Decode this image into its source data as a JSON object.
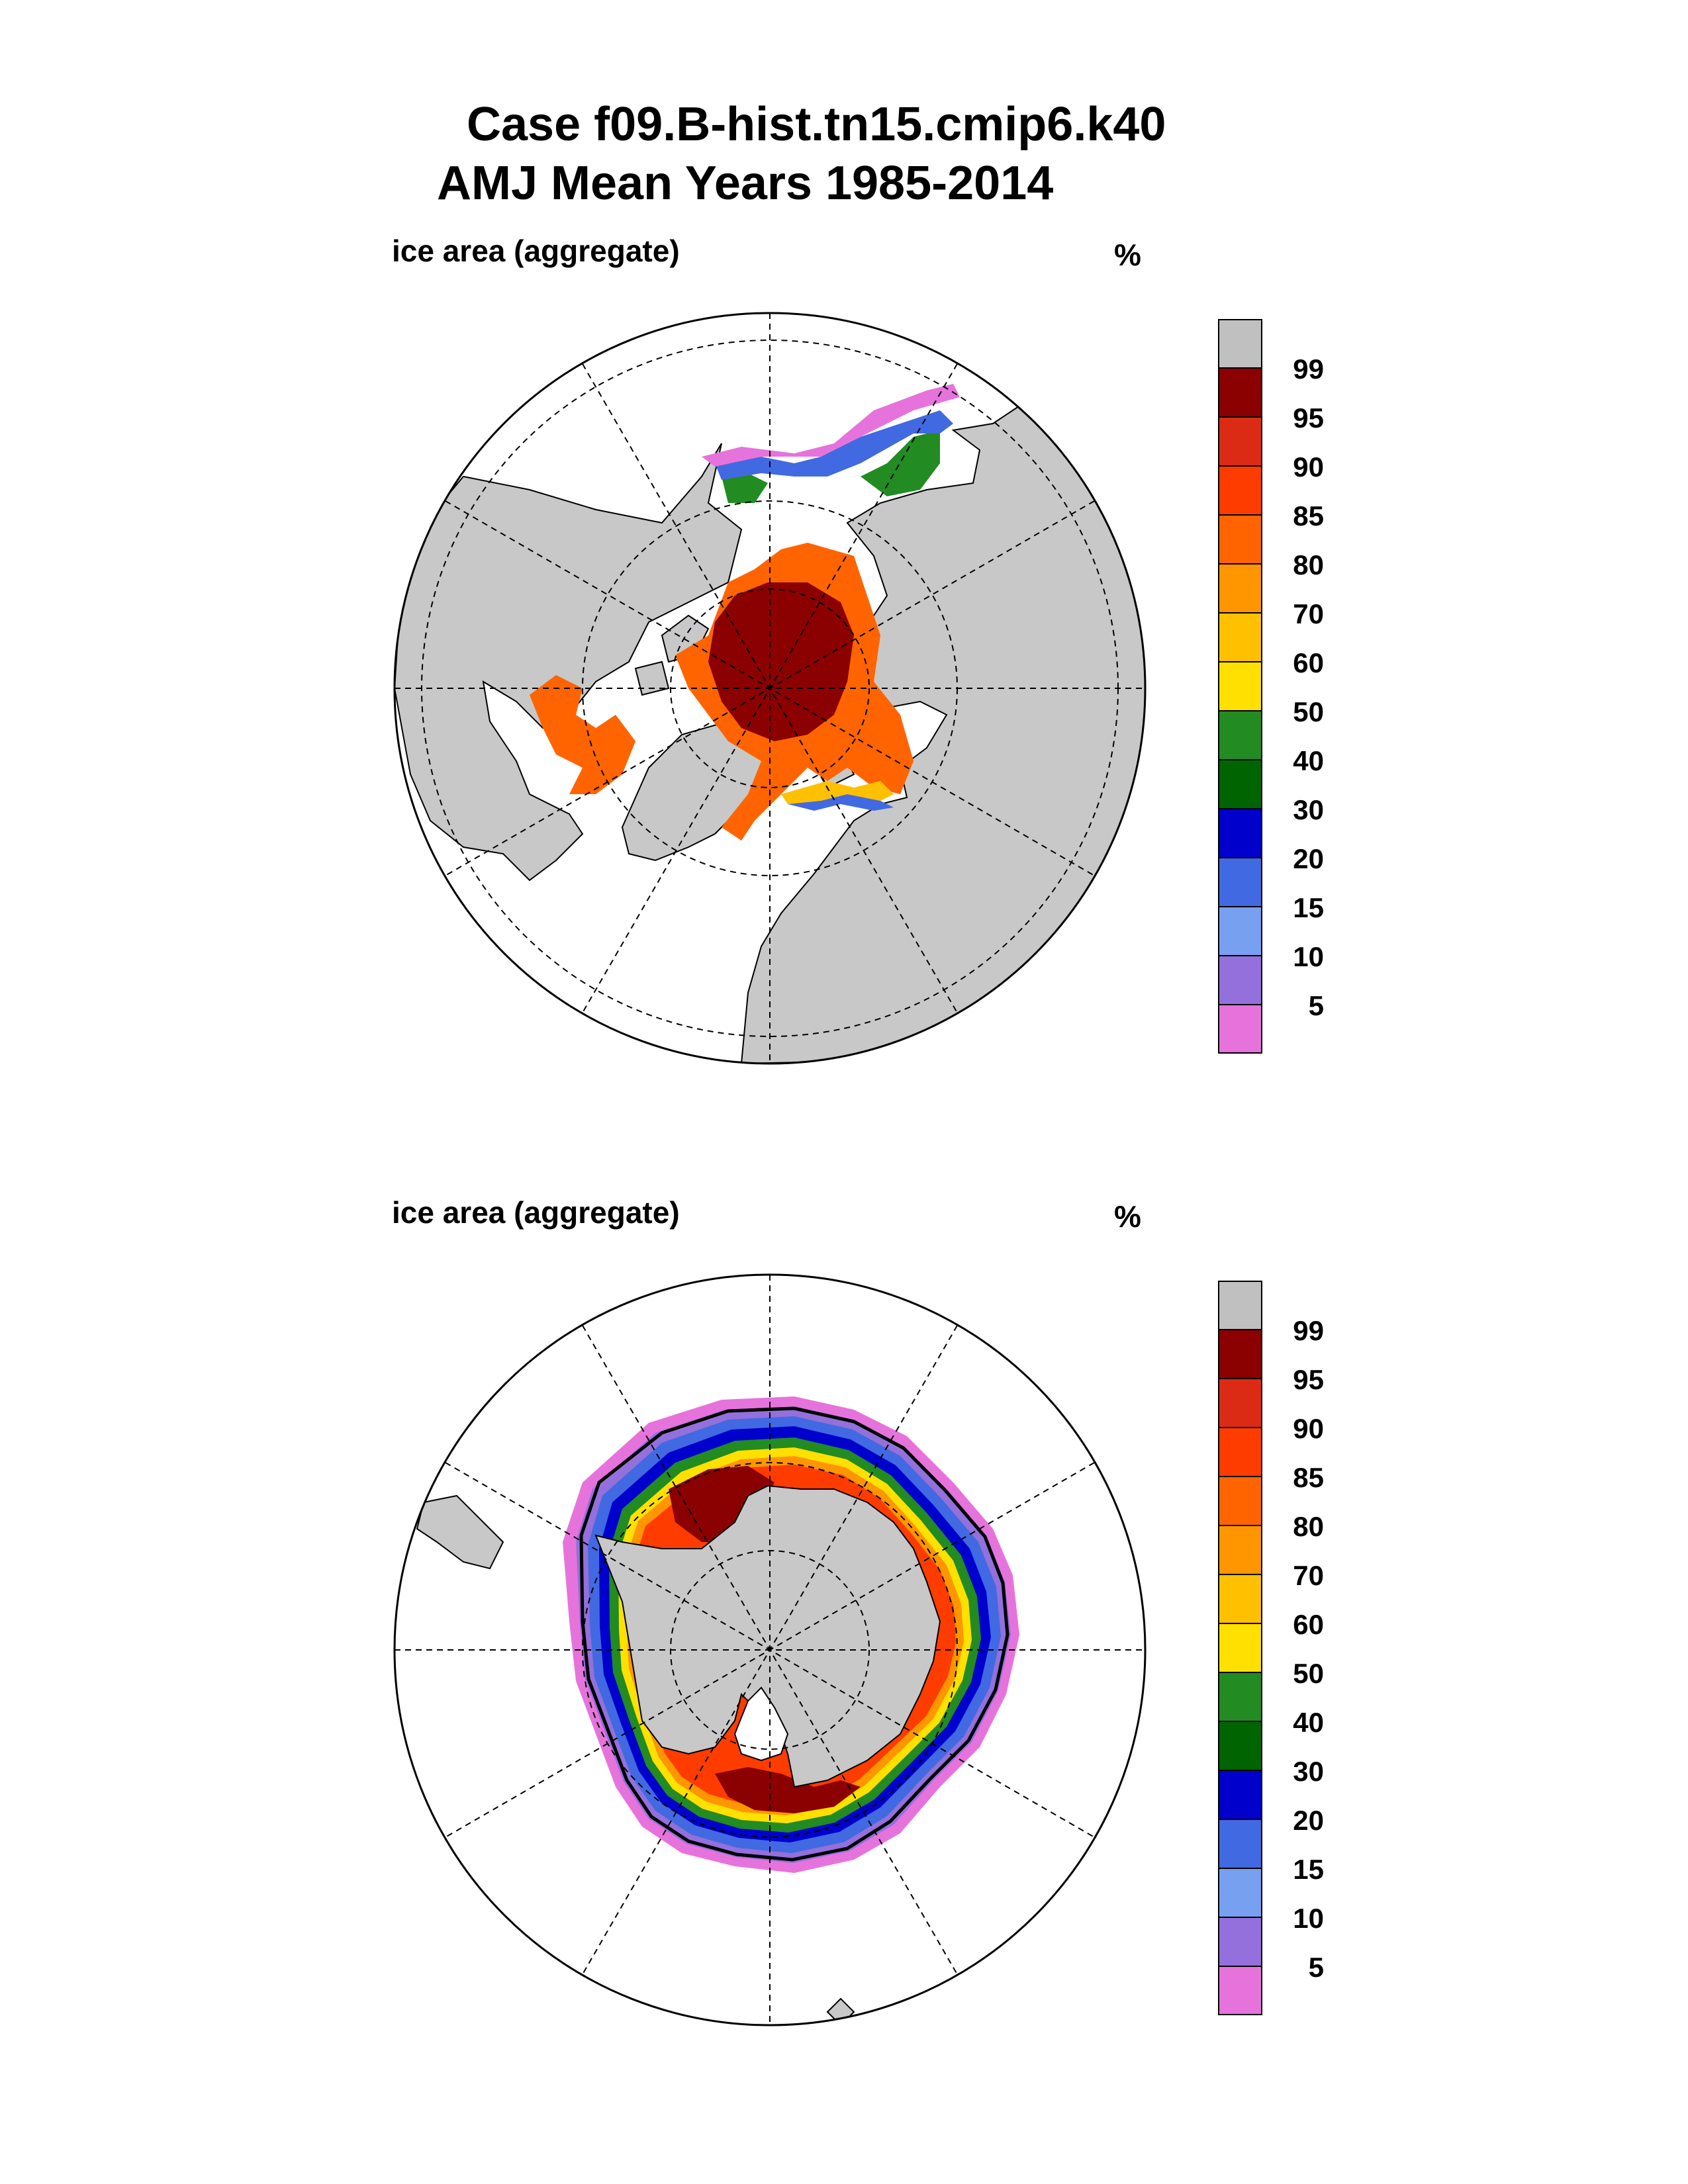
{
  "title": {
    "line1": "Case f09.B-hist.tn15.cmip6.k40",
    "line2": "AMJ Mean   Years 1985-2014"
  },
  "panels": [
    {
      "id": "north",
      "label": "ice area  (aggregate)",
      "units": "%",
      "hemisphere": "Northern"
    },
    {
      "id": "south",
      "label": "ice area  (aggregate)",
      "units": "%",
      "hemisphere": "Southern"
    }
  ],
  "colorbar": {
    "levels": [
      "99",
      "95",
      "90",
      "85",
      "80",
      "70",
      "60",
      "50",
      "40",
      "30",
      "20",
      "15",
      "10",
      "5"
    ],
    "colors": [
      "#c0c0c0",
      "#8b0000",
      "#dc2b14",
      "#ff3c00",
      "#ff6400",
      "#ff9600",
      "#ffc000",
      "#ffe000",
      "#228b22",
      "#006400",
      "#0000cd",
      "#4169e1",
      "#78a0f0",
      "#9370db",
      "#e673dc"
    ]
  },
  "map_colors": {
    "land": "#c8c8c8",
    "ocean": "#ffffff"
  }
}
